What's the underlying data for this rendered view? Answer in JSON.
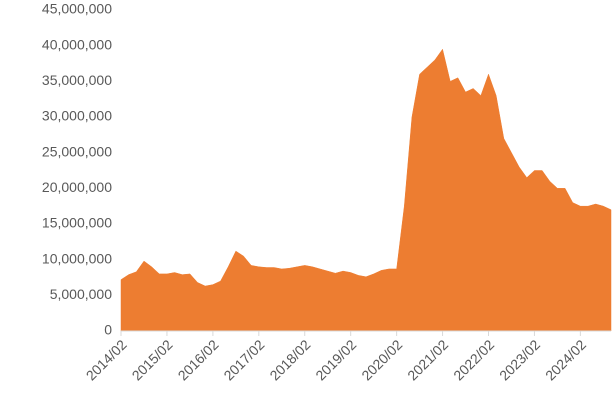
{
  "chart_data": {
    "type": "area",
    "color": "#ED7D31",
    "categories": [
      "2014/02",
      null,
      null,
      null,
      null,
      null,
      "2015/02",
      null,
      null,
      null,
      null,
      null,
      "2016/02",
      null,
      null,
      null,
      null,
      null,
      "2017/02",
      null,
      null,
      null,
      null,
      null,
      "2018/02",
      null,
      null,
      null,
      null,
      null,
      "2019/02",
      null,
      null,
      null,
      null,
      null,
      "2020/02",
      null,
      null,
      null,
      null,
      null,
      "2021/02",
      null,
      null,
      null,
      null,
      null,
      "2022/02",
      null,
      null,
      null,
      null,
      null,
      "2023/02",
      null,
      null,
      null,
      null,
      null,
      "2024/02",
      null,
      null,
      null,
      null
    ],
    "values": [
      7200000,
      7900000,
      8300000,
      9800000,
      9000000,
      8000000,
      8000000,
      8200000,
      7900000,
      8000000,
      6800000,
      6300000,
      6500000,
      7000000,
      9000000,
      11200000,
      10500000,
      9200000,
      9000000,
      8900000,
      8900000,
      8700000,
      8800000,
      9000000,
      9200000,
      9000000,
      8700000,
      8400000,
      8100000,
      8400000,
      8200000,
      7800000,
      7600000,
      8000000,
      8500000,
      8700000,
      8700000,
      17500000,
      30000000,
      36000000,
      37000000,
      38000000,
      39500000,
      35000000,
      35500000,
      33500000,
      34000000,
      33000000,
      36000000,
      33000000,
      27000000,
      25000000,
      23000000,
      21500000,
      22500000,
      22500000,
      21000000,
      20000000,
      20000000,
      18000000,
      17500000,
      17500000,
      17800000,
      17500000,
      17000000
    ],
    "ylim": [
      0,
      45000000
    ],
    "yticks": [
      0,
      {
        "value": 5000000,
        "label": "5,000,000"
      },
      {
        "value": 10000000,
        "label": "10,000,000"
      },
      {
        "value": 15000000,
        "label": "15,000,000"
      },
      {
        "value": 20000000,
        "label": "20,000,000"
      },
      {
        "value": 25000000,
        "label": "25,000,000"
      },
      {
        "value": 30000000,
        "label": "30,000,000"
      },
      {
        "value": 35000000,
        "label": "35,000,000"
      },
      {
        "value": 40000000,
        "label": "40,000,000"
      },
      {
        "value": 45000000,
        "label": "45,000,000"
      }
    ],
    "grid": false
  }
}
